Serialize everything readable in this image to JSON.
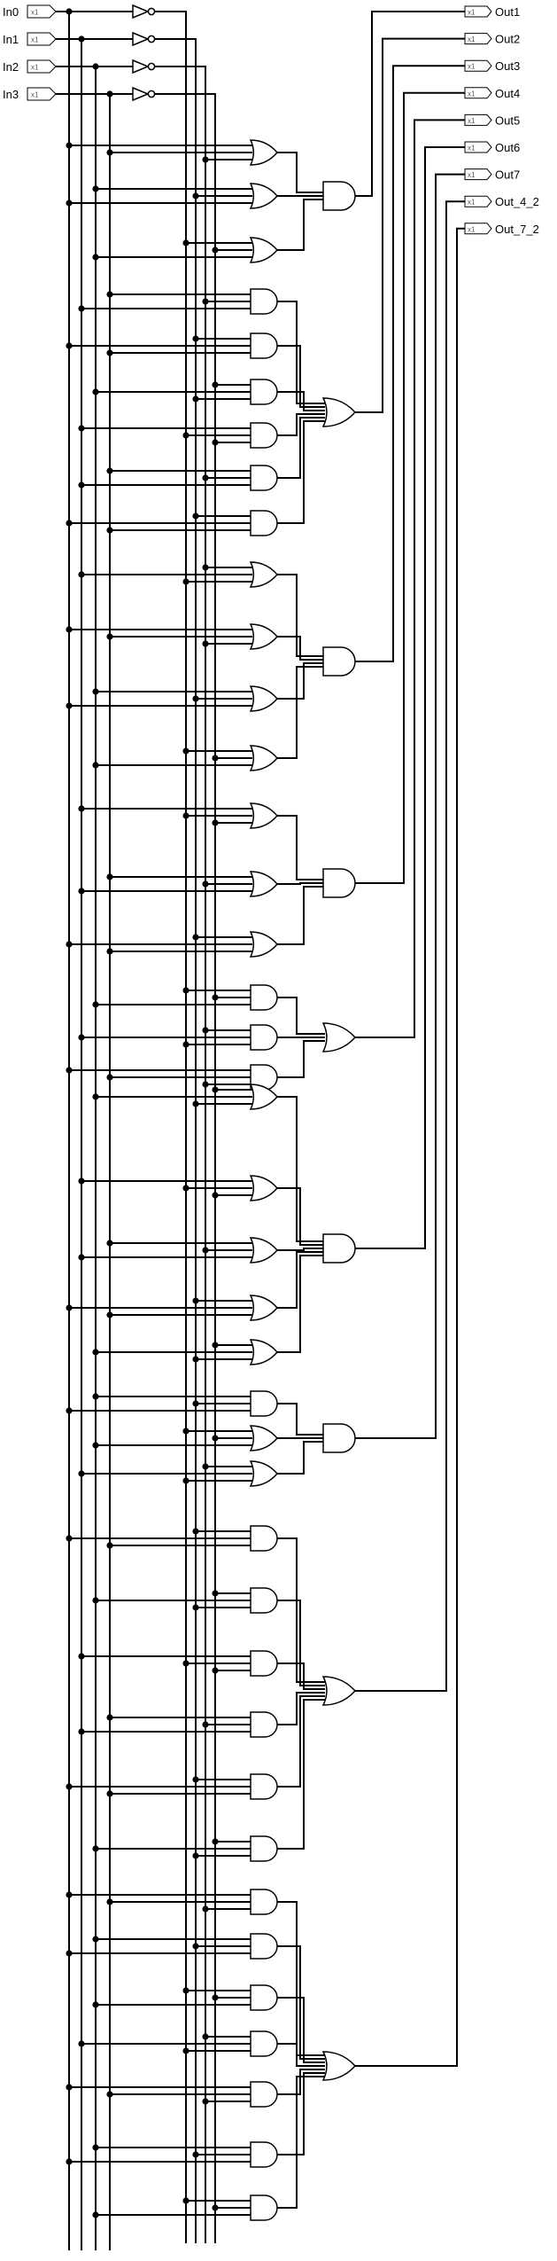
{
  "diagram": {
    "inputs": [
      {
        "name": "In0",
        "width_tag": "x1"
      },
      {
        "name": "In1",
        "width_tag": "x1"
      },
      {
        "name": "In2",
        "width_tag": "x1"
      },
      {
        "name": "In3",
        "width_tag": "x1"
      }
    ],
    "outputs": [
      {
        "name": "Out1",
        "width_tag": "x1"
      },
      {
        "name": "Out2",
        "width_tag": "x1"
      },
      {
        "name": "Out3",
        "width_tag": "x1"
      },
      {
        "name": "Out4",
        "width_tag": "x1"
      },
      {
        "name": "Out5",
        "width_tag": "x1"
      },
      {
        "name": "Out6",
        "width_tag": "x1"
      },
      {
        "name": "Out7",
        "width_tag": "x1"
      },
      {
        "name": "Out_4_2",
        "width_tag": "x1"
      },
      {
        "name": "Out_7_2",
        "width_tag": "x1"
      }
    ],
    "inverter_count": 4,
    "blocks": [
      {
        "first_level": [
          "or",
          "or",
          "or"
        ],
        "second_level": "and"
      },
      {
        "first_level": [
          "and",
          "and",
          "and",
          "and",
          "and",
          "and"
        ],
        "second_level": "or"
      },
      {
        "first_level": [
          "or",
          "or",
          "or",
          "or"
        ],
        "second_level": "and"
      },
      {
        "first_level": [
          "or",
          "or",
          "or"
        ],
        "second_level": "and"
      },
      {
        "first_level": [
          "and",
          "and",
          "and"
        ],
        "second_level": "or"
      },
      {
        "first_level": [
          "or",
          "or",
          "or",
          "or",
          "or"
        ],
        "second_level": "and"
      },
      {
        "first_level": [
          "and",
          "or",
          "or"
        ],
        "second_level": "and"
      },
      {
        "first_level": [
          "and",
          "and",
          "and",
          "and",
          "and",
          "and"
        ],
        "second_level": "or"
      },
      {
        "first_level": [
          "and",
          "and",
          "and",
          "and",
          "and",
          "and",
          "and"
        ],
        "second_level": "or"
      }
    ],
    "colors": {
      "wire": "#000000",
      "gate_fill": "#ffffff",
      "background": "#ffffff",
      "tag_text": "#555555"
    }
  }
}
